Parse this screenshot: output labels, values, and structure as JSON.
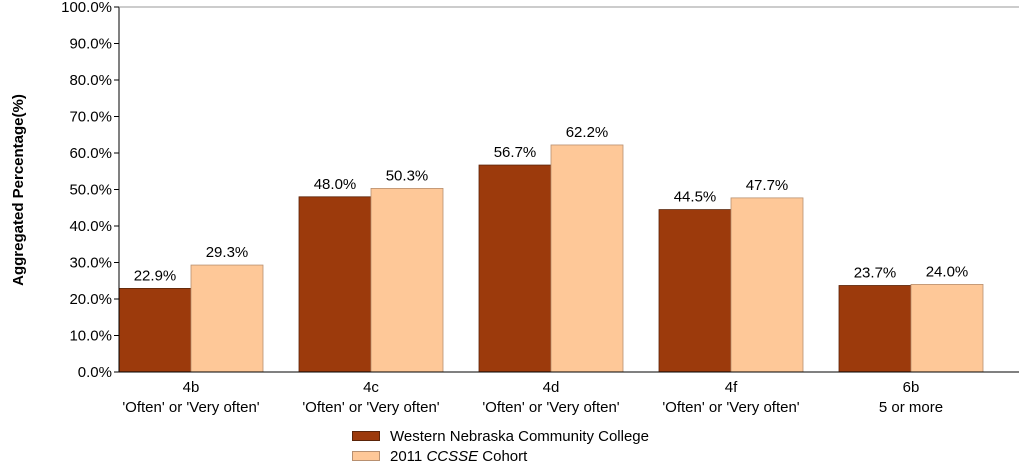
{
  "chart_data": {
    "type": "bar",
    "title": "",
    "ylabel": "Aggregated Percentage(%)",
    "xlabel": "",
    "ylim": [
      0,
      100
    ],
    "yticks": [
      "0.0%",
      "10.0%",
      "20.0%",
      "30.0%",
      "40.0%",
      "50.0%",
      "60.0%",
      "70.0%",
      "80.0%",
      "90.0%",
      "100.0%"
    ],
    "categories": [
      {
        "line1": "4b",
        "line2": "'Often' or 'Very often'"
      },
      {
        "line1": "4c",
        "line2": "'Often' or 'Very often'"
      },
      {
        "line1": "4d",
        "line2": "'Often' or 'Very often'"
      },
      {
        "line1": "4f",
        "line2": "'Often' or 'Very often'"
      },
      {
        "line1": "6b",
        "line2": "5 or more"
      }
    ],
    "series": [
      {
        "name": "Western Nebraska Community College",
        "color": "#9c3a0c",
        "values": [
          22.9,
          48.0,
          56.7,
          44.5,
          23.7
        ],
        "labels": [
          "22.9%",
          "48.0%",
          "56.7%",
          "44.5%",
          "23.7%"
        ]
      },
      {
        "name": "2011 CCSSE Cohort",
        "color": "#fec898",
        "values": [
          29.3,
          50.3,
          62.2,
          47.7,
          24.0
        ],
        "labels": [
          "29.3%",
          "50.3%",
          "62.2%",
          "47.7%",
          "24.0%"
        ]
      }
    ],
    "legend": {
      "position": "bottom",
      "items": [
        {
          "text": "Western Nebraska Community College"
        },
        {
          "prefix": "2011 ",
          "italic": "CCSSE",
          "suffix": " Cohort"
        }
      ]
    },
    "grid": false
  }
}
